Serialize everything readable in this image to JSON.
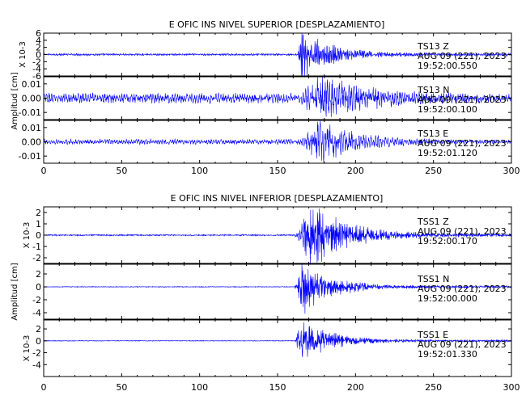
{
  "chart_data": [
    {
      "type": "line",
      "title": "E OFIC INS NIVEL SUPERIOR [DESPLAZAMIENTO]",
      "xlabel": "",
      "ylabel": "Amplitud [cm]",
      "xlim": [
        0,
        300
      ],
      "x_ticks": [
        "0",
        "50",
        "100",
        "150",
        "200",
        "250",
        "300"
      ],
      "grid": false,
      "series": [
        {
          "name": "TS13 Z",
          "date": "AUG 09 (221), 2023",
          "time": "19:52:00.550",
          "ylim": [
            -6,
            6
          ],
          "scale_label": "X 10-3",
          "y_ticks": [
            "6",
            "4",
            "2",
            "0",
            "-2",
            "-4",
            "-6"
          ],
          "envelope": {
            "pre_amp": 0.25,
            "onset": 163,
            "peak_amp": 6,
            "peak_t": 165,
            "decay": 18,
            "post_amp": 0.35,
            "freq": 1.0
          }
        },
        {
          "name": "TS13 N",
          "date": "AUG 09 (221), 2023",
          "time": "19:52:00.100",
          "ylim": [
            -0.015,
            0.015
          ],
          "y_ticks": [
            "0.01",
            "0.00",
            "-0.01"
          ],
          "envelope": {
            "pre_amp": 0.003,
            "onset": 165,
            "peak_amp": 0.014,
            "peak_t": 177,
            "decay": 35,
            "post_amp": 0.002,
            "freq": 0.35
          }
        },
        {
          "name": "TS13 E",
          "date": "AUG 09 (221), 2023",
          "time": "19:52:01.120",
          "ylim": [
            -0.015,
            0.015
          ],
          "y_ticks": [
            "0.01",
            "0.00",
            "-0.01"
          ],
          "envelope": {
            "pre_amp": 0.0015,
            "onset": 165,
            "peak_amp": 0.013,
            "peak_t": 177,
            "decay": 25,
            "post_amp": 0.001,
            "freq": 0.35
          }
        }
      ]
    },
    {
      "type": "line",
      "title": "E OFIC INS NIVEL INFERIOR [DESPLAZAMIENTO]",
      "xlabel": "",
      "ylabel": "Amplitud [cm]",
      "xlim": [
        0,
        300
      ],
      "x_ticks": [
        "0",
        "50",
        "100",
        "150",
        "200",
        "250",
        "300"
      ],
      "grid": false,
      "series": [
        {
          "name": "TSS1 Z",
          "date": "AUG 09 (221), 2023",
          "time": "19:52:00.170",
          "ylim": [
            -2.5,
            2.5
          ],
          "scale_label": "X 10-3",
          "y_ticks": [
            "2",
            "1",
            "0",
            "-1",
            "-2"
          ],
          "envelope": {
            "pre_amp": 0.05,
            "onset": 161,
            "peak_amp": 2.4,
            "peak_t": 172,
            "decay": 22,
            "post_amp": 0.12,
            "freq": 1.5
          }
        },
        {
          "name": "TSS1 N",
          "date": "AUG 09 (221), 2023",
          "time": "19:52:00.000",
          "ylim": [
            -5,
            3.5
          ],
          "y_ticks": [
            "2",
            "0",
            "-2",
            "-4"
          ],
          "envelope": {
            "pre_amp": 0.05,
            "onset": 161,
            "peak_amp": 3.5,
            "peak_t": 166,
            "decay": 18,
            "post_amp": 0.15,
            "freq": 1.5
          }
        },
        {
          "name": "TSS1 E",
          "date": "AUG 09 (221), 2023",
          "time": "19:52:01.330",
          "ylim": [
            -6,
            3.5
          ],
          "scale_label": "X 10-3",
          "y_ticks": [
            "2",
            "0",
            "-2",
            "-4"
          ],
          "envelope": {
            "pre_amp": 0.05,
            "onset": 161,
            "peak_amp": 3.0,
            "peak_t": 166,
            "decay": 18,
            "post_amp": 0.15,
            "freq": 1.5
          }
        }
      ]
    }
  ]
}
